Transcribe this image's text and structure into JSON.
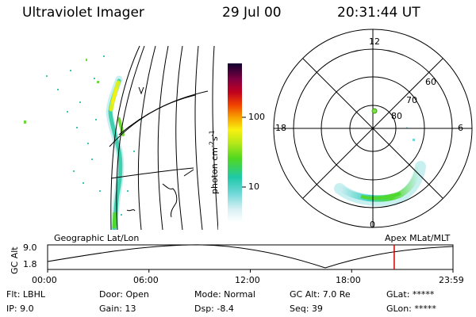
{
  "header": {
    "title": "Ultraviolet Imager",
    "date": "29 Jul 00",
    "time": "20:31:44 UT"
  },
  "colorbar": {
    "label": "photon cm^-2 s^-1",
    "tick_100": "100",
    "tick_10": "10"
  },
  "polar": {
    "mlt_12": "12",
    "mlt_18": "18",
    "mlt_6": "6",
    "mlt_0": "0",
    "lat_60": "60",
    "lat_70": "70",
    "lat_80": "80"
  },
  "timeline": {
    "left_label": "Geographic Lat/Lon",
    "right_label": "Apex MLat/MLT",
    "axis_label": "GC Alt",
    "y_max": "9.0",
    "y_min": "1.8",
    "ticks": [
      "00:00",
      "06:00",
      "12:00",
      "18:00",
      "23:59"
    ],
    "current_marker_fraction": 0.855,
    "marker_color": "#d00000"
  },
  "info": {
    "flt": "Flt: LBHL",
    "ip": "IP:  9.0",
    "door": "Door: Open",
    "gain": "Gain: 13",
    "mode": "Mode: Normal",
    "dsp": "Dsp:    -8.4",
    "gc_alt": "GC Alt: 7.0 Re",
    "seq": "Seq: 39",
    "glat": "GLat: *****",
    "glon": "GLon: *****"
  }
}
